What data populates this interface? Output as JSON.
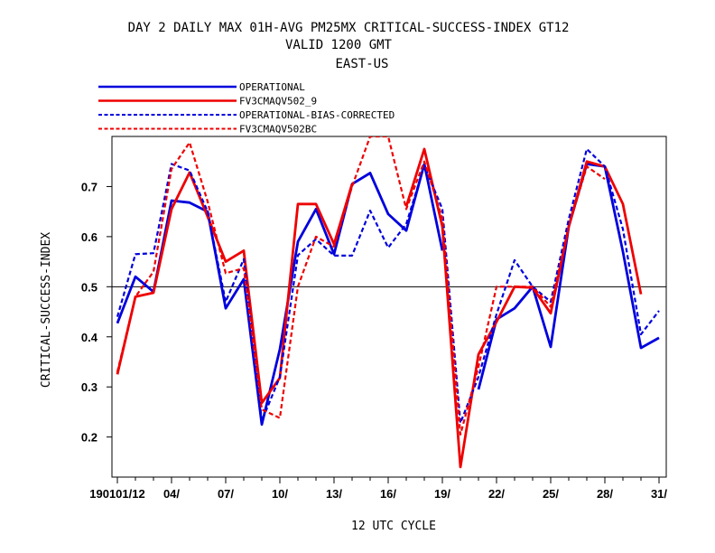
{
  "chart_data": {
    "type": "line",
    "title": [
      "DAY 2 DAILY MAX   01H-AVG PM25MX CRITICAL-SUCCESS-INDEX GT12",
      "VALID 1200 GMT",
      "EAST-US"
    ],
    "xlabel": "12 UTC CYCLE",
    "ylabel": "CRITICAL-SUCCESS-INDEX",
    "ylim": [
      0.12,
      0.8
    ],
    "xlim": [
      0.7,
      31.4
    ],
    "yticks": [
      0.2,
      0.3,
      0.4,
      0.5,
      0.6,
      0.7
    ],
    "ytick_labels": [
      "0.2",
      "0.3",
      "0.4",
      "0.5",
      "0.6",
      "0.7"
    ],
    "xticks": [
      1,
      4,
      7,
      10,
      13,
      16,
      19,
      22,
      25,
      28,
      31
    ],
    "xtick_labels": [
      "190101/12",
      "04/",
      "07/",
      "10/",
      "13/",
      "16/",
      "19/",
      "22/",
      "25/",
      "28/",
      "31/"
    ],
    "reference_line": 0.5,
    "x": [
      1,
      2,
      3,
      4,
      5,
      6,
      7,
      8,
      9,
      10,
      11,
      12,
      13,
      14,
      15,
      16,
      17,
      18,
      19,
      20,
      21,
      22,
      23,
      24,
      25,
      26,
      27,
      28,
      29,
      30,
      31
    ],
    "legend_position": "top-left-above-plot",
    "series": [
      {
        "name": "OPERATIONAL",
        "color": "#0000dd",
        "dash": "solid",
        "values": [
          0.427,
          0.52,
          0.49,
          0.672,
          0.668,
          0.65,
          0.457,
          0.515,
          0.225,
          0.375,
          0.59,
          0.655,
          0.565,
          0.705,
          0.727,
          0.645,
          0.612,
          0.745,
          0.572,
          null,
          0.295,
          0.435,
          0.457,
          0.5,
          0.38,
          0.62,
          0.745,
          0.74,
          0.57,
          0.378,
          0.398
        ]
      },
      {
        "name": "FV3CMAQV502_9",
        "color": "#ee0000",
        "dash": "solid",
        "values": [
          0.325,
          0.48,
          0.488,
          0.655,
          0.728,
          0.64,
          0.55,
          0.572,
          0.268,
          0.318,
          0.665,
          0.665,
          0.585,
          0.705,
          null,
          null,
          0.66,
          0.775,
          0.62,
          0.14,
          0.365,
          0.43,
          0.5,
          0.498,
          0.447,
          0.62,
          0.75,
          0.74,
          0.665,
          0.485,
          null
        ]
      },
      {
        "name": "OPERATIONAL-BIAS-CORRECTED",
        "color": "#0000dd",
        "dash": "dashed",
        "values": [
          0.44,
          0.565,
          0.567,
          0.745,
          0.732,
          0.65,
          0.47,
          0.555,
          0.232,
          0.32,
          0.563,
          0.595,
          0.562,
          0.562,
          0.652,
          0.578,
          0.625,
          0.742,
          0.655,
          0.228,
          0.32,
          0.445,
          0.553,
          0.5,
          0.47,
          0.635,
          0.775,
          0.74,
          0.615,
          0.405,
          0.452
        ]
      },
      {
        "name": "FV3CMAQV502BC",
        "color": "#ee0000",
        "dash": "dashed",
        "values": [
          0.33,
          0.48,
          0.53,
          0.735,
          0.788,
          0.67,
          0.527,
          0.537,
          0.255,
          0.238,
          0.5,
          0.6,
          0.58,
          0.7,
          0.8,
          0.8,
          0.655,
          0.75,
          0.637,
          0.205,
          0.34,
          0.5,
          0.5,
          0.5,
          0.46,
          0.62,
          0.74,
          0.715,
          null,
          null,
          null
        ]
      }
    ]
  }
}
